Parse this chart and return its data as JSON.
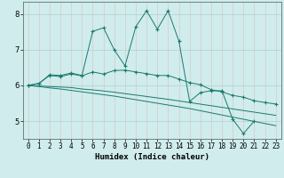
{
  "xlabel": "Humidex (Indice chaleur)",
  "x_values": [
    0,
    1,
    2,
    3,
    4,
    5,
    6,
    7,
    8,
    9,
    10,
    11,
    12,
    13,
    14,
    15,
    16,
    17,
    18,
    19,
    20,
    21,
    22,
    23
  ],
  "line1_y": [
    6.0,
    6.05,
    6.3,
    6.28,
    6.35,
    6.28,
    7.52,
    7.62,
    7.0,
    6.55,
    7.65,
    8.1,
    7.58,
    8.1,
    7.25,
    5.55,
    5.8,
    5.85,
    5.85,
    5.05,
    4.65,
    5.0,
    null,
    null
  ],
  "line2_y": [
    6.0,
    6.06,
    6.28,
    6.25,
    6.32,
    6.27,
    6.38,
    6.32,
    6.42,
    6.43,
    6.38,
    6.33,
    6.28,
    6.28,
    6.18,
    6.08,
    6.02,
    5.88,
    5.82,
    5.72,
    5.67,
    5.57,
    5.52,
    5.48
  ],
  "line3_y": [
    6.0,
    5.985,
    5.97,
    5.955,
    5.94,
    5.9,
    5.875,
    5.845,
    5.81,
    5.77,
    5.73,
    5.69,
    5.65,
    5.61,
    5.565,
    5.52,
    5.475,
    5.43,
    5.385,
    5.34,
    5.295,
    5.25,
    5.205,
    5.16
  ],
  "line4_y": [
    6.0,
    5.97,
    5.93,
    5.9,
    5.86,
    5.82,
    5.78,
    5.74,
    5.7,
    5.65,
    5.6,
    5.55,
    5.5,
    5.45,
    5.4,
    5.35,
    5.29,
    5.23,
    5.17,
    5.11,
    5.05,
    4.99,
    4.93,
    4.87
  ],
  "color": "#1a7a6e",
  "bg_color": "#d0ecec",
  "grid_color": "#b0d0d0",
  "ylim": [
    4.5,
    8.35
  ],
  "xlim": [
    -0.5,
    23.5
  ],
  "yticks": [
    5,
    6,
    7,
    8
  ],
  "xticks": [
    0,
    1,
    2,
    3,
    4,
    5,
    6,
    7,
    8,
    9,
    10,
    11,
    12,
    13,
    14,
    15,
    16,
    17,
    18,
    19,
    20,
    21,
    22,
    23
  ],
  "tick_fontsize": 5.5,
  "xlabel_fontsize": 6.5
}
